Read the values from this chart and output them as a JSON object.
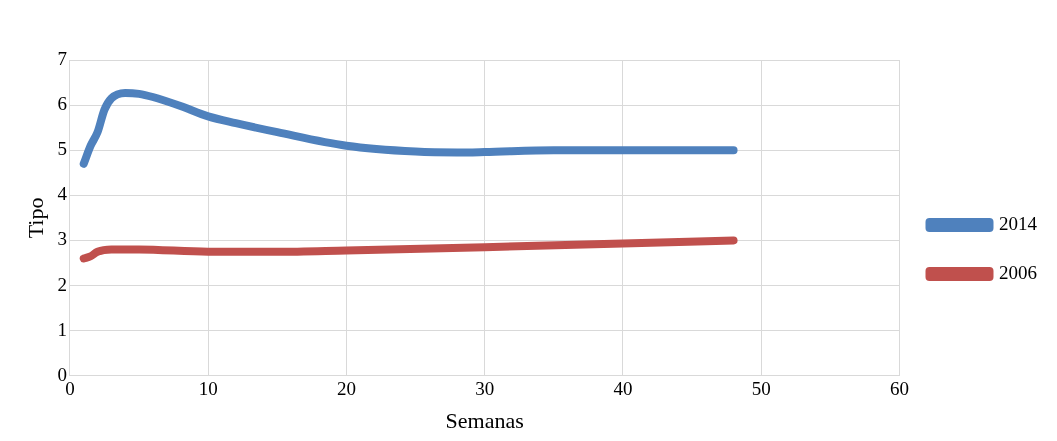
{
  "chart_data": {
    "type": "line",
    "xlabel": "Semanas",
    "ylabel": "Tipo",
    "xlim": [
      0,
      60
    ],
    "xticks": [
      0,
      10,
      20,
      30,
      40,
      50,
      60
    ],
    "ylim": [
      0,
      7
    ],
    "yticks": [
      0,
      1,
      2,
      3,
      4,
      5,
      6,
      7
    ],
    "grid": true,
    "legend": "right",
    "marker": "none",
    "line_style": "solid",
    "series": [
      {
        "name": "2014",
        "color": "#4f81bd",
        "x": [
          1,
          1.5,
          2,
          2.5,
          3,
          4,
          5,
          6,
          8,
          10,
          12,
          15,
          20,
          25,
          28,
          30,
          35,
          40,
          48
        ],
        "values": [
          4.7,
          5.1,
          5.4,
          5.9,
          6.15,
          6.27,
          6.25,
          6.18,
          5.98,
          5.75,
          5.6,
          5.4,
          5.1,
          4.97,
          4.95,
          4.96,
          5.0,
          5.0,
          5.0
        ]
      },
      {
        "name": "2006",
        "color": "#c0504d",
        "x": [
          1,
          1.5,
          2,
          3,
          5,
          10,
          15,
          20,
          30,
          40,
          48
        ],
        "values": [
          2.6,
          2.65,
          2.75,
          2.8,
          2.8,
          2.75,
          2.75,
          2.78,
          2.85,
          2.93,
          3.0
        ]
      }
    ]
  }
}
